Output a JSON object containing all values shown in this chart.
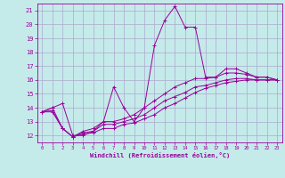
{
  "xlabel": "Windchill (Refroidissement éolien,°C)",
  "xlim": [
    -0.5,
    23.5
  ],
  "ylim": [
    11.5,
    21.5
  ],
  "xticks": [
    0,
    1,
    2,
    3,
    4,
    5,
    6,
    7,
    8,
    9,
    10,
    11,
    12,
    13,
    14,
    15,
    16,
    17,
    18,
    19,
    20,
    21,
    22,
    23
  ],
  "yticks": [
    12,
    13,
    14,
    15,
    16,
    17,
    18,
    19,
    20,
    21
  ],
  "bg_color": "#c5eaea",
  "line_color": "#990099",
  "grid_color": "#aaaacc",
  "lines": [
    {
      "x": [
        0,
        1,
        2,
        3,
        4,
        5,
        6,
        7,
        8,
        9,
        10,
        11,
        12,
        13,
        14,
        15,
        16,
        17,
        18,
        19,
        20,
        21,
        22,
        23
      ],
      "y": [
        13.7,
        14.0,
        14.3,
        12.0,
        12.0,
        12.3,
        13.0,
        15.5,
        14.0,
        13.0,
        14.0,
        18.5,
        20.3,
        21.3,
        19.8,
        19.8,
        16.2,
        16.2,
        16.8,
        16.8,
        16.5,
        16.2,
        16.2,
        16.0
      ]
    },
    {
      "x": [
        0,
        1,
        2,
        3,
        4,
        5,
        6,
        7,
        8,
        9,
        10,
        11,
        12,
        13,
        14,
        15,
        16,
        17,
        18,
        19,
        20,
        21,
        22,
        23
      ],
      "y": [
        13.7,
        14.0,
        12.5,
        11.9,
        12.3,
        12.5,
        13.0,
        13.0,
        13.2,
        13.5,
        14.0,
        14.5,
        15.0,
        15.5,
        15.8,
        16.1,
        16.1,
        16.2,
        16.5,
        16.5,
        16.4,
        16.2,
        16.2,
        16.0
      ]
    },
    {
      "x": [
        0,
        1,
        2,
        3,
        4,
        5,
        6,
        7,
        8,
        9,
        10,
        11,
        12,
        13,
        14,
        15,
        16,
        17,
        18,
        19,
        20,
        21,
        22,
        23
      ],
      "y": [
        13.7,
        13.8,
        12.5,
        11.9,
        12.2,
        12.3,
        12.8,
        12.8,
        13.0,
        13.2,
        13.5,
        14.0,
        14.5,
        14.8,
        15.1,
        15.5,
        15.6,
        15.8,
        16.0,
        16.1,
        16.1,
        16.0,
        16.0,
        16.0
      ]
    },
    {
      "x": [
        0,
        1,
        2,
        3,
        4,
        5,
        6,
        7,
        8,
        9,
        10,
        11,
        12,
        13,
        14,
        15,
        16,
        17,
        18,
        19,
        20,
        21,
        22,
        23
      ],
      "y": [
        13.7,
        13.7,
        12.5,
        11.9,
        12.1,
        12.2,
        12.5,
        12.5,
        12.8,
        12.9,
        13.2,
        13.5,
        14.0,
        14.3,
        14.7,
        15.1,
        15.4,
        15.6,
        15.8,
        15.9,
        16.0,
        16.0,
        16.0,
        16.0
      ]
    }
  ]
}
